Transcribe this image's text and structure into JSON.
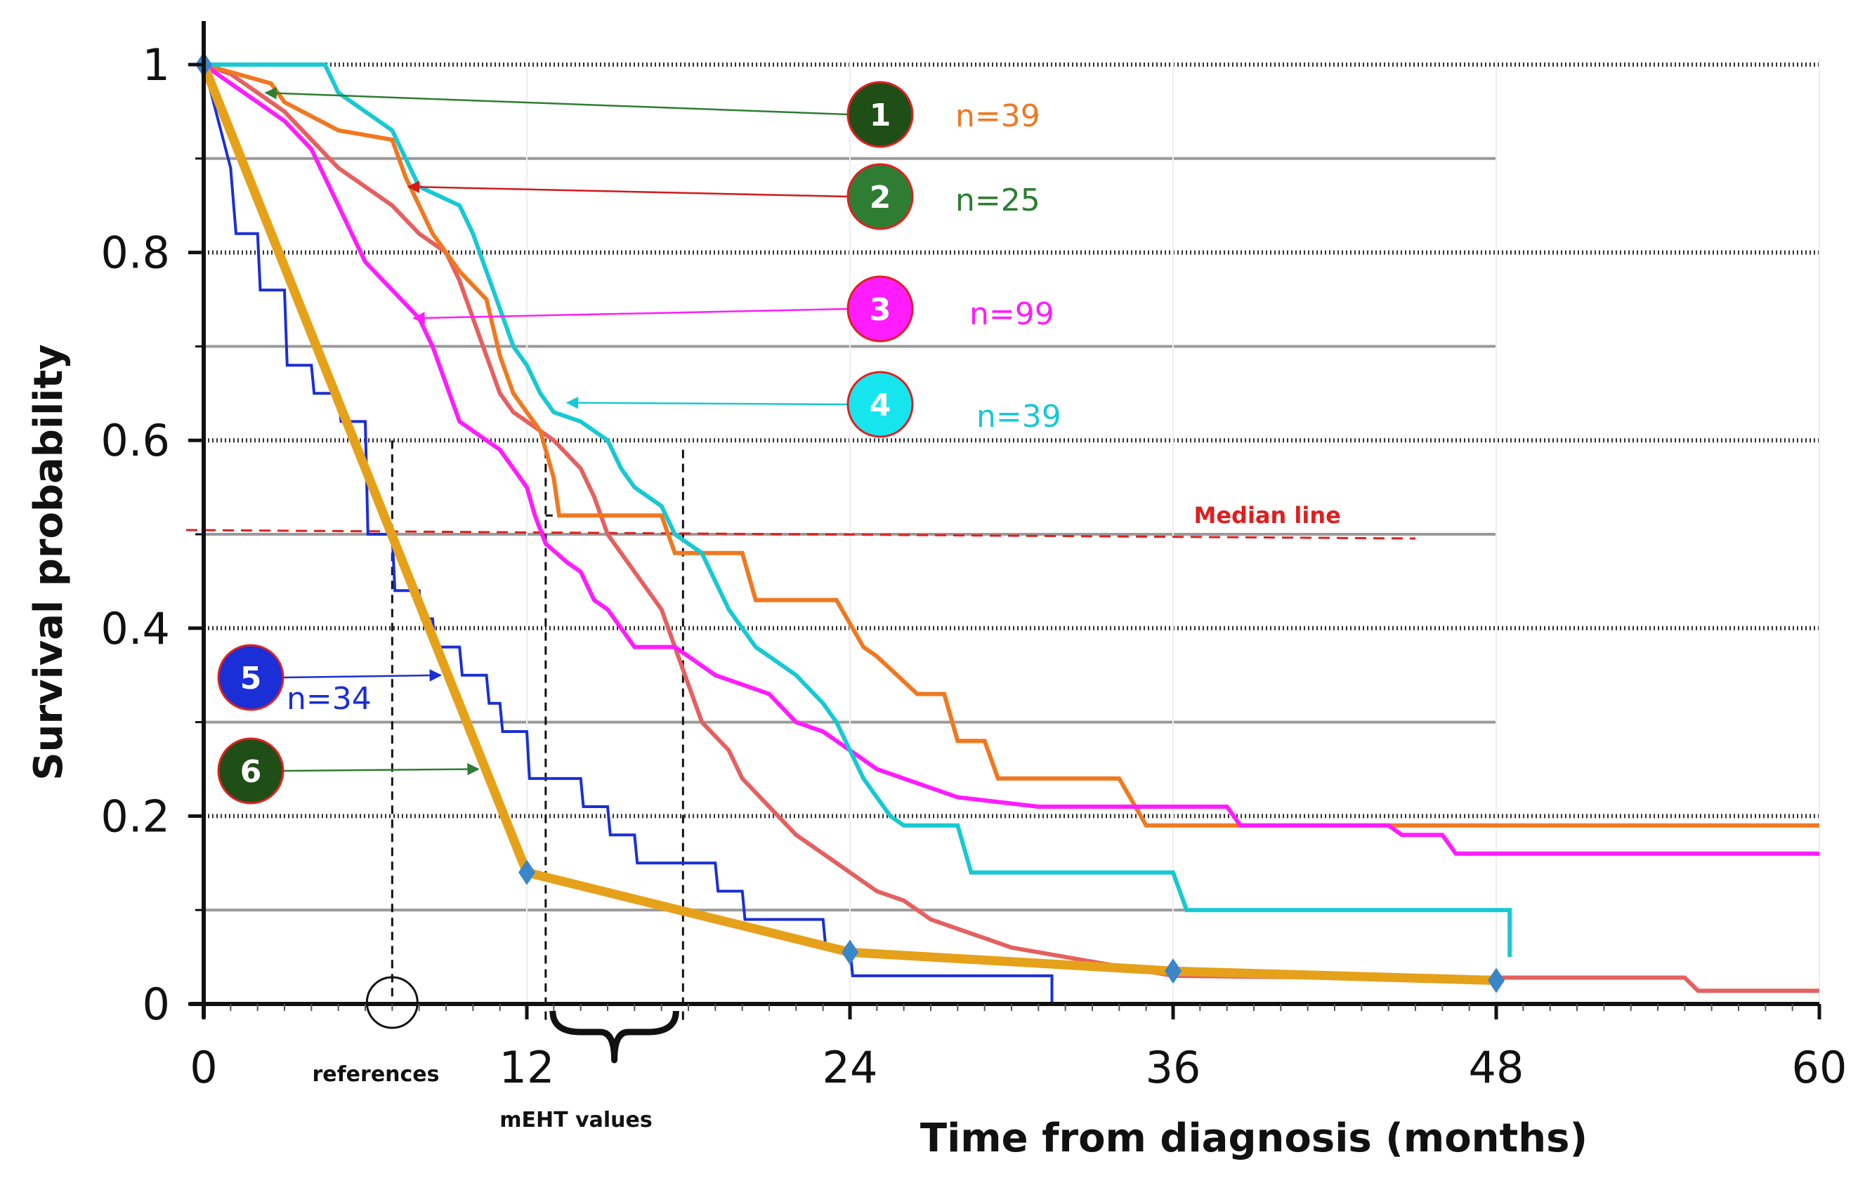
{
  "chart_data": {
    "type": "line",
    "title": "",
    "xlabel": "Time from diagnosis (months)",
    "ylabel": "Survival probability",
    "xlim": [
      0,
      60
    ],
    "ylim": [
      0,
      1
    ],
    "x_ticks": [
      0,
      12,
      24,
      36,
      48,
      60
    ],
    "x_tick_labels": [
      "0",
      "12",
      "24",
      "36",
      "48",
      "60"
    ],
    "y_ticks": [
      0,
      0.2,
      0.4,
      0.6,
      0.8,
      1
    ],
    "y_tick_labels": [
      "0",
      "0.2",
      "0.4",
      "0.6",
      "0.8",
      "1"
    ],
    "major_gridlines_y": [
      0.2,
      0.4,
      0.6,
      0.8,
      1
    ],
    "minor_gridlines_y": [
      0.1,
      0.3,
      0.5,
      0.7,
      0.9
    ],
    "minor_gridline_end_x": 48,
    "median_line": {
      "y": 0.5,
      "label": "Median line",
      "color": "#e01f1f",
      "x_end": 45
    },
    "series": [
      {
        "name": "1",
        "color": "#f07820",
        "n_label": "n=39",
        "label_color": "#f07820",
        "points": [
          [
            0,
            1
          ],
          [
            2.5,
            0.98
          ],
          [
            3,
            0.96
          ],
          [
            5,
            0.93
          ],
          [
            7,
            0.92
          ],
          [
            7.5,
            0.88
          ],
          [
            8,
            0.85
          ],
          [
            8.5,
            0.82
          ],
          [
            9,
            0.8
          ],
          [
            9.5,
            0.78
          ],
          [
            10.5,
            0.75
          ],
          [
            11,
            0.69
          ],
          [
            11.5,
            0.65
          ],
          [
            12,
            0.63
          ],
          [
            12.5,
            0.61
          ],
          [
            13,
            0.56
          ],
          [
            13.2,
            0.52
          ],
          [
            15.5,
            0.52
          ],
          [
            17,
            0.52
          ],
          [
            17.5,
            0.48
          ],
          [
            20,
            0.48
          ],
          [
            20.5,
            0.43
          ],
          [
            23.5,
            0.43
          ],
          [
            24.5,
            0.38
          ],
          [
            25,
            0.37
          ],
          [
            26.5,
            0.33
          ],
          [
            27.5,
            0.33
          ],
          [
            28,
            0.28
          ],
          [
            29,
            0.28
          ],
          [
            29.5,
            0.24
          ],
          [
            34,
            0.24
          ],
          [
            35,
            0.19
          ],
          [
            60,
            0.19
          ]
        ]
      },
      {
        "name": "2",
        "color": "#2e7d32",
        "n_label": "n=25",
        "label_color": "#2e7d32",
        "points": []
      },
      {
        "name": "3",
        "color": "#ff1cff",
        "n_label": "n=99",
        "label_color": "#ff1cff",
        "points": [
          [
            0,
            1
          ],
          [
            1,
            0.98
          ],
          [
            2,
            0.96
          ],
          [
            3,
            0.94
          ],
          [
            4,
            0.91
          ],
          [
            4.5,
            0.88
          ],
          [
            5,
            0.85
          ],
          [
            5.5,
            0.82
          ],
          [
            6,
            0.79
          ],
          [
            7,
            0.76
          ],
          [
            8,
            0.73
          ],
          [
            8.5,
            0.7
          ],
          [
            9,
            0.66
          ],
          [
            9.5,
            0.62
          ],
          [
            10,
            0.61
          ],
          [
            11,
            0.59
          ],
          [
            11.5,
            0.57
          ],
          [
            12,
            0.55
          ],
          [
            12.3,
            0.52
          ],
          [
            12.7,
            0.49
          ],
          [
            13.5,
            0.47
          ],
          [
            14,
            0.46
          ],
          [
            14.5,
            0.43
          ],
          [
            15,
            0.42
          ],
          [
            15.5,
            0.4
          ],
          [
            16,
            0.38
          ],
          [
            17.5,
            0.38
          ],
          [
            18,
            0.37
          ],
          [
            19,
            0.35
          ],
          [
            20,
            0.34
          ],
          [
            21,
            0.33
          ],
          [
            22,
            0.3
          ],
          [
            23,
            0.29
          ],
          [
            24,
            0.27
          ],
          [
            25,
            0.25
          ],
          [
            26,
            0.24
          ],
          [
            28,
            0.22
          ],
          [
            31,
            0.21
          ],
          [
            38,
            0.21
          ],
          [
            38.5,
            0.19
          ],
          [
            44,
            0.19
          ],
          [
            44.5,
            0.18
          ],
          [
            46,
            0.18
          ],
          [
            46.5,
            0.16
          ],
          [
            60,
            0.16
          ]
        ]
      },
      {
        "name": "4",
        "color": "#17c9d3",
        "n_label": "n=39",
        "label_color": "#17c9d3",
        "points": [
          [
            0,
            1
          ],
          [
            4.5,
            1
          ],
          [
            5,
            0.97
          ],
          [
            6,
            0.95
          ],
          [
            7,
            0.93
          ],
          [
            7.5,
            0.9
          ],
          [
            8,
            0.87
          ],
          [
            9.5,
            0.85
          ],
          [
            10,
            0.82
          ],
          [
            10.5,
            0.78
          ],
          [
            11,
            0.74
          ],
          [
            11.5,
            0.7
          ],
          [
            12,
            0.68
          ],
          [
            12.5,
            0.65
          ],
          [
            13,
            0.63
          ],
          [
            14,
            0.62
          ],
          [
            15,
            0.6
          ],
          [
            15.5,
            0.57
          ],
          [
            16,
            0.55
          ],
          [
            17,
            0.53
          ],
          [
            17.5,
            0.5
          ],
          [
            18.5,
            0.48
          ],
          [
            19,
            0.45
          ],
          [
            19.5,
            0.42
          ],
          [
            20.5,
            0.38
          ],
          [
            21,
            0.37
          ],
          [
            22,
            0.35
          ],
          [
            23,
            0.32
          ],
          [
            23.5,
            0.3
          ],
          [
            24,
            0.27
          ],
          [
            24.5,
            0.24
          ],
          [
            25,
            0.22
          ],
          [
            25.5,
            0.2
          ],
          [
            26,
            0.19
          ],
          [
            28,
            0.19
          ],
          [
            28.5,
            0.14
          ],
          [
            36,
            0.14
          ],
          [
            36.5,
            0.1
          ],
          [
            48.5,
            0.1
          ],
          [
            48.5,
            0.05
          ]
        ]
      },
      {
        "name": "5",
        "color": "#1a2fd6",
        "n_label": "n=34",
        "label_color": "#1a2fd6",
        "points": [
          [
            0,
            1
          ],
          [
            1,
            0.89
          ],
          [
            1.2,
            0.82
          ],
          [
            2,
            0.82
          ],
          [
            2.1,
            0.76
          ],
          [
            3,
            0.76
          ],
          [
            3.1,
            0.68
          ],
          [
            4,
            0.68
          ],
          [
            4.1,
            0.65
          ],
          [
            5,
            0.65
          ],
          [
            5.1,
            0.62
          ],
          [
            6,
            0.62
          ],
          [
            6.1,
            0.5
          ],
          [
            7,
            0.5
          ],
          [
            7.1,
            0.44
          ],
          [
            8,
            0.44
          ],
          [
            8.1,
            0.41
          ],
          [
            8.5,
            0.41
          ],
          [
            8.6,
            0.38
          ],
          [
            9.5,
            0.38
          ],
          [
            9.6,
            0.35
          ],
          [
            10.5,
            0.35
          ],
          [
            10.6,
            0.32
          ],
          [
            11,
            0.32
          ],
          [
            11.1,
            0.29
          ],
          [
            12,
            0.29
          ],
          [
            12.1,
            0.24
          ],
          [
            14,
            0.24
          ],
          [
            14.1,
            0.21
          ],
          [
            15,
            0.21
          ],
          [
            15.1,
            0.18
          ],
          [
            16,
            0.18
          ],
          [
            16.1,
            0.15
          ],
          [
            19,
            0.15
          ],
          [
            19.1,
            0.12
          ],
          [
            20,
            0.12
          ],
          [
            20.1,
            0.09
          ],
          [
            23,
            0.09
          ],
          [
            23.1,
            0.06
          ],
          [
            24,
            0.06
          ],
          [
            24.1,
            0.03
          ],
          [
            31.5,
            0.03
          ],
          [
            31.5,
            0
          ]
        ]
      },
      {
        "name": "6",
        "color": "#e6a11a",
        "n_label": "",
        "label_color": "#e6a11a",
        "points": [
          [
            0,
            1
          ],
          [
            12,
            0.14
          ],
          [
            24,
            0.055
          ],
          [
            36,
            0.035
          ],
          [
            48,
            0.025
          ]
        ],
        "markers": [
          [
            0,
            1
          ],
          [
            12,
            0.14
          ],
          [
            24,
            0.055
          ],
          [
            36,
            0.035
          ],
          [
            48,
            0.025
          ]
        ]
      },
      {
        "name": "reference",
        "color": "#e56060",
        "n_label": "",
        "label_color": "#e56060",
        "points": [
          [
            0,
            1
          ],
          [
            1,
            0.99
          ],
          [
            2,
            0.97
          ],
          [
            3,
            0.95
          ],
          [
            4,
            0.92
          ],
          [
            5,
            0.89
          ],
          [
            6,
            0.87
          ],
          [
            7,
            0.85
          ],
          [
            8,
            0.82
          ],
          [
            9,
            0.8
          ],
          [
            9.5,
            0.77
          ],
          [
            10,
            0.73
          ],
          [
            10.5,
            0.69
          ],
          [
            11,
            0.65
          ],
          [
            11.5,
            0.63
          ],
          [
            12,
            0.62
          ],
          [
            13,
            0.6
          ],
          [
            14,
            0.57
          ],
          [
            14.5,
            0.54
          ],
          [
            15,
            0.5
          ],
          [
            16,
            0.46
          ],
          [
            17,
            0.42
          ],
          [
            17.5,
            0.38
          ],
          [
            18,
            0.34
          ],
          [
            18.5,
            0.3
          ],
          [
            19.5,
            0.27
          ],
          [
            20,
            0.24
          ],
          [
            21,
            0.21
          ],
          [
            22,
            0.18
          ],
          [
            23,
            0.16
          ],
          [
            24,
            0.14
          ],
          [
            25,
            0.12
          ],
          [
            26,
            0.11
          ],
          [
            27,
            0.09
          ],
          [
            28,
            0.08
          ],
          [
            29,
            0.07
          ],
          [
            30,
            0.06
          ],
          [
            32,
            0.05
          ],
          [
            34,
            0.04
          ],
          [
            36,
            0.03
          ],
          [
            42,
            0.028
          ],
          [
            48,
            0.028
          ],
          [
            55,
            0.028
          ],
          [
            55.5,
            0.014
          ],
          [
            60,
            0.014
          ]
        ]
      }
    ],
    "annotations": {
      "references_label": "references",
      "meht_label": "mEHT values",
      "reference_x": 7,
      "meht_range": [
        12.7,
        17.8
      ]
    }
  }
}
